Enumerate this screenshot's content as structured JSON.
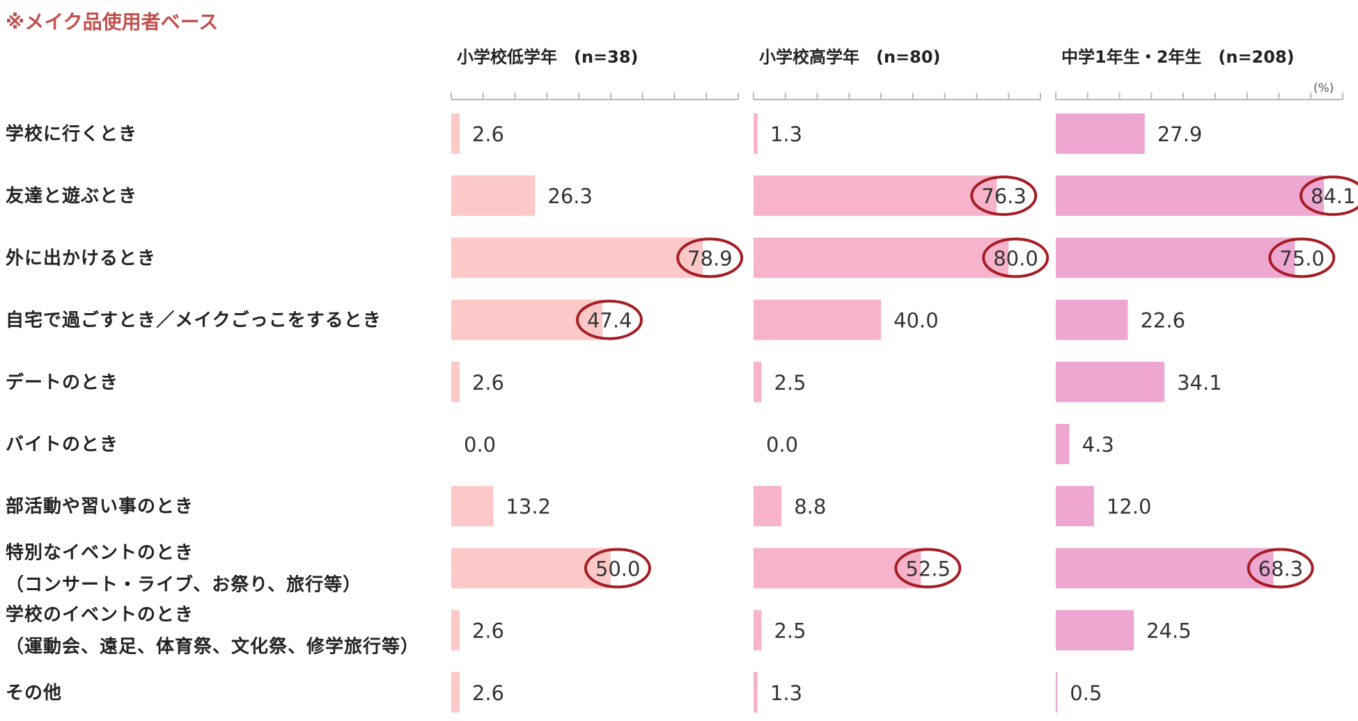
{
  "note": "※メイク品使用者ベース",
  "unit_label": "(%)",
  "chart_data": {
    "type": "bar",
    "orientation": "horizontal",
    "categories": [
      [
        "学校に行くとき"
      ],
      [
        "友達と遊ぶとき"
      ],
      [
        "外に出かけるとき"
      ],
      [
        "自宅で過ごすとき／メイクごっこをするとき"
      ],
      [
        "デートのとき"
      ],
      [
        "バイトのとき"
      ],
      [
        "部活動や習い事のとき"
      ],
      [
        "特別なイベントのとき",
        "（コンサート・ライブ、お祭り、旅行等）"
      ],
      [
        "学校のイベントのとき",
        "（運動会、遠足、体育祭、文化祭、修学旅行等）"
      ],
      [
        "その他"
      ]
    ],
    "xlim": [
      0,
      90
    ],
    "tick_step": 10,
    "unit": "(%)",
    "series": [
      {
        "name": "小学校低学年 (n=38)",
        "title": "小学校低学年　(n=38)",
        "color": "#FCC8C8",
        "values": [
          2.6,
          26.3,
          78.9,
          47.4,
          2.6,
          0.0,
          13.2,
          50.0,
          2.6,
          2.6
        ],
        "value_labels": [
          "2.6",
          "26.3",
          "78.9",
          "47.4",
          "2.6",
          "0.0",
          "13.2",
          "50.0",
          "2.6",
          "2.6"
        ],
        "circled": [
          false,
          false,
          true,
          true,
          false,
          false,
          false,
          true,
          false,
          false
        ]
      },
      {
        "name": "小学校高学年 (n=80)",
        "title": "小学校高学年　(n=80)",
        "color": "#F6B3CB",
        "values": [
          1.3,
          76.3,
          80.0,
          40.0,
          2.5,
          0.0,
          8.8,
          52.5,
          2.5,
          1.3
        ],
        "value_labels": [
          "1.3",
          "76.3",
          "80.0",
          "40.0",
          "2.5",
          "0.0",
          "8.8",
          "52.5",
          "2.5",
          "1.3"
        ],
        "circled": [
          false,
          true,
          true,
          false,
          false,
          false,
          false,
          true,
          false,
          false
        ]
      },
      {
        "name": "中学1年生・2年生 (n=208)",
        "title": "中学1年生・2年生　(n=208)",
        "color": "#EEA7D1",
        "values": [
          27.9,
          84.1,
          75.0,
          22.6,
          34.1,
          4.3,
          12.0,
          68.3,
          24.5,
          0.5
        ],
        "value_labels": [
          "27.9",
          "84.1",
          "75.0",
          "22.6",
          "34.1",
          "4.3",
          "12.0",
          "68.3",
          "24.5",
          "0.5"
        ],
        "circled": [
          false,
          true,
          true,
          false,
          false,
          false,
          false,
          true,
          false,
          false
        ]
      }
    ],
    "grid": false,
    "legend": "none"
  },
  "colors": {
    "note": "#C0504D",
    "circle": "#A51C24",
    "axis": "#B8B8B8",
    "text": "#222222"
  }
}
